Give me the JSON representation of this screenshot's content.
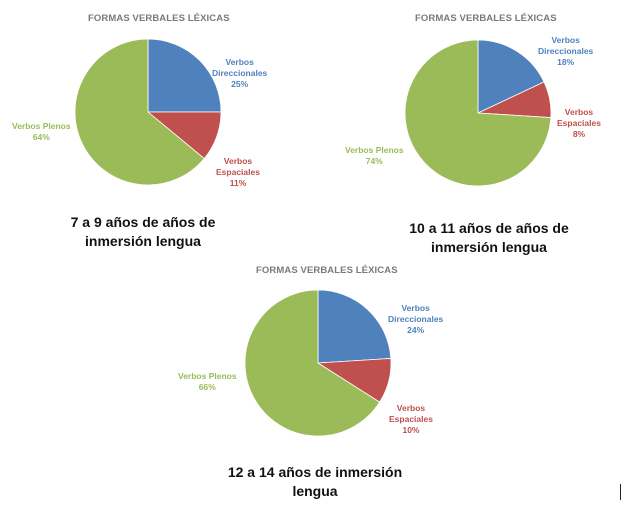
{
  "colors": {
    "Verbos Direccionales": "#4f81bd",
    "Verbos Espaciales": "#c0504d",
    "Verbos Plenos": "#9bbb59"
  },
  "chart_data": [
    {
      "type": "pie",
      "title": "FORMAS VERBALES LÉXICAS",
      "caption_line1": "7 a 9 años de años de",
      "caption_line2": "inmersión lengua",
      "slices": [
        {
          "label_line1": "Verbos",
          "label_line2": "Direccionales",
          "value": 25,
          "pct": "25%"
        },
        {
          "label_line1": "Verbos",
          "label_line2": "Espaciales",
          "value": 11,
          "pct": "11%"
        },
        {
          "label_line1": "Verbos Plenos",
          "label_line2": "",
          "value": 64,
          "pct": "64%"
        }
      ]
    },
    {
      "type": "pie",
      "title": "FORMAS VERBALES LÉXICAS",
      "caption_line1": "10 a 11 años de años de",
      "caption_line2": "inmersión lengua",
      "slices": [
        {
          "label_line1": "Verbos",
          "label_line2": "Direccionales",
          "value": 18,
          "pct": "18%"
        },
        {
          "label_line1": "Verbos",
          "label_line2": "Espaciales",
          "value": 8,
          "pct": "8%"
        },
        {
          "label_line1": "Verbos Plenos",
          "label_line2": "",
          "value": 74,
          "pct": "74%"
        }
      ]
    },
    {
      "type": "pie",
      "title": "FORMAS VERBALES LÉXICAS",
      "caption_line1": "12 a 14  años de inmersión",
      "caption_line2": "lengua",
      "slices": [
        {
          "label_line1": "Verbos",
          "label_line2": "Direccionales",
          "value": 24,
          "pct": "24%"
        },
        {
          "label_line1": "Verbos",
          "label_line2": "Espaciales",
          "value": 10,
          "pct": "10%"
        },
        {
          "label_line1": "Verbos Plenos",
          "label_line2": "",
          "value": 66,
          "pct": "66%"
        }
      ]
    }
  ]
}
